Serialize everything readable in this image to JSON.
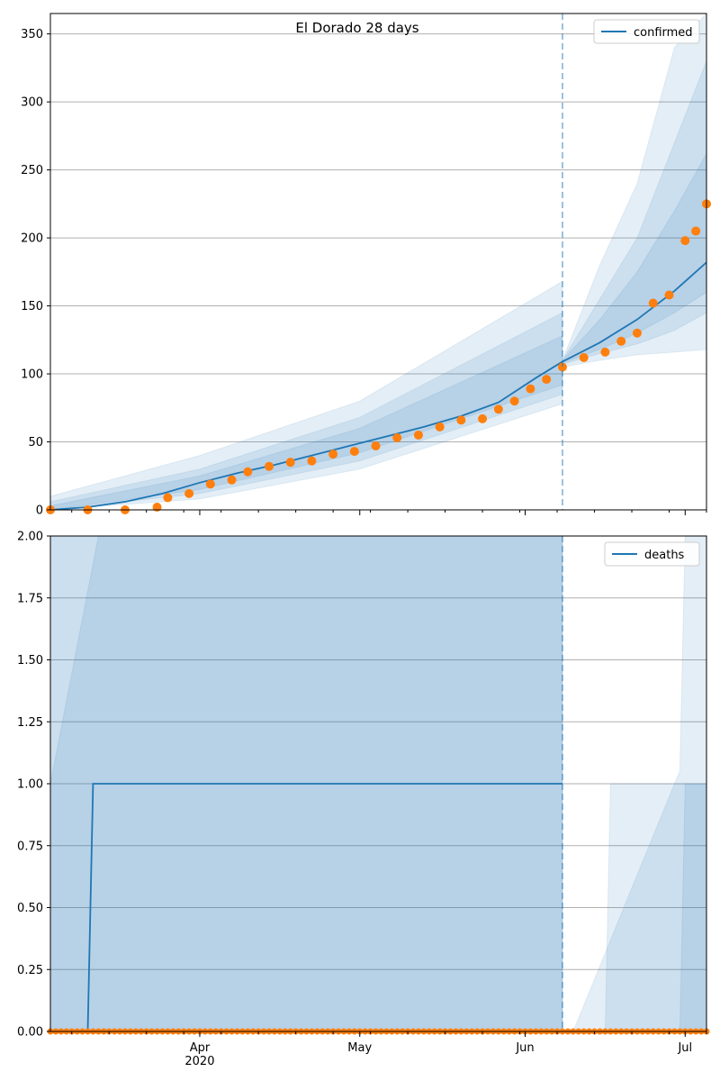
{
  "chart_data": [
    {
      "type": "line",
      "title": "El Dorado 28 days",
      "xlabel": "",
      "ylabel": "",
      "x_range": [
        "2020-03-04",
        "2020-07-05"
      ],
      "ylim": [
        0,
        365
      ],
      "y_ticks": [
        0,
        50,
        100,
        150,
        200,
        250,
        300,
        350
      ],
      "grid": "horizontal",
      "legend": "top-right",
      "forecast_start": "2020-06-08",
      "series": [
        {
          "name": "confirmed",
          "kind": "line",
          "color": "#1f77b4",
          "points": [
            [
              "2020-03-04",
              0
            ],
            [
              "2020-03-11",
              2
            ],
            [
              "2020-03-18",
              6
            ],
            [
              "2020-03-25",
              12
            ],
            [
              "2020-04-01",
              20
            ],
            [
              "2020-04-08",
              27
            ],
            [
              "2020-04-15",
              33
            ],
            [
              "2020-04-22",
              40
            ],
            [
              "2020-04-29",
              47
            ],
            [
              "2020-05-06",
              54
            ],
            [
              "2020-05-13",
              61
            ],
            [
              "2020-05-20",
              69
            ],
            [
              "2020-05-27",
              79
            ],
            [
              "2020-06-03",
              97
            ],
            [
              "2020-06-08",
              109
            ],
            [
              "2020-06-15",
              123
            ],
            [
              "2020-06-22",
              140
            ],
            [
              "2020-06-29",
              161
            ],
            [
              "2020-07-05",
              182
            ]
          ]
        },
        {
          "name": "",
          "kind": "observed",
          "color": "#ff7f0e",
          "points": [
            [
              "2020-03-04",
              0
            ],
            [
              "2020-03-11",
              0
            ],
            [
              "2020-03-18",
              0
            ],
            [
              "2020-03-24",
              2
            ],
            [
              "2020-03-26",
              9
            ],
            [
              "2020-03-30",
              12
            ],
            [
              "2020-04-03",
              19
            ],
            [
              "2020-04-07",
              22
            ],
            [
              "2020-04-10",
              28
            ],
            [
              "2020-04-14",
              32
            ],
            [
              "2020-04-18",
              35
            ],
            [
              "2020-04-22",
              36
            ],
            [
              "2020-04-26",
              41
            ],
            [
              "2020-04-30",
              43
            ],
            [
              "2020-05-04",
              47
            ],
            [
              "2020-05-08",
              53
            ],
            [
              "2020-05-12",
              55
            ],
            [
              "2020-05-16",
              61
            ],
            [
              "2020-05-20",
              66
            ],
            [
              "2020-05-24",
              67
            ],
            [
              "2020-05-27",
              74
            ],
            [
              "2020-05-30",
              80
            ],
            [
              "2020-06-02",
              89
            ],
            [
              "2020-06-05",
              96
            ],
            [
              "2020-06-08",
              105
            ],
            [
              "2020-06-12",
              112
            ],
            [
              "2020-06-16",
              116
            ],
            [
              "2020-06-19",
              124
            ],
            [
              "2020-06-22",
              130
            ],
            [
              "2020-06-25",
              152
            ],
            [
              "2020-06-28",
              158
            ],
            [
              "2020-07-01",
              198
            ],
            [
              "2020-07-03",
              205
            ],
            [
              "2020-07-05",
              225
            ]
          ]
        }
      ],
      "bands": [
        {
          "opacity": 0.12,
          "upper": [
            [
              "2020-03-04",
              10
            ],
            [
              "2020-04-01",
              40
            ],
            [
              "2020-05-01",
              80
            ],
            [
              "2020-06-08",
              168
            ],
            [
              "2020-06-08",
              110
            ],
            [
              "2020-06-15",
              180
            ],
            [
              "2020-06-22",
              240
            ],
            [
              "2020-06-29",
              340
            ],
            [
              "2020-07-05",
              365
            ]
          ],
          "lower": [
            [
              "2020-03-04",
              0
            ],
            [
              "2020-04-01",
              8
            ],
            [
              "2020-05-01",
              30
            ],
            [
              "2020-06-08",
              78
            ],
            [
              "2020-06-08",
              105
            ],
            [
              "2020-06-15",
              110
            ],
            [
              "2020-06-22",
              114
            ],
            [
              "2020-06-29",
              116
            ],
            [
              "2020-07-05",
              118
            ]
          ]
        },
        {
          "opacity": 0.12,
          "upper": [
            [
              "2020-03-04",
              6
            ],
            [
              "2020-04-01",
              30
            ],
            [
              "2020-05-01",
              68
            ],
            [
              "2020-06-08",
              145
            ],
            [
              "2020-06-08",
              110
            ],
            [
              "2020-06-15",
              155
            ],
            [
              "2020-06-22",
              200
            ],
            [
              "2020-06-29",
              270
            ],
            [
              "2020-07-05",
              330
            ]
          ],
          "lower": [
            [
              "2020-03-04",
              0
            ],
            [
              "2020-04-01",
              12
            ],
            [
              "2020-05-01",
              36
            ],
            [
              "2020-06-08",
              85
            ],
            [
              "2020-06-08",
              107
            ],
            [
              "2020-06-15",
              115
            ],
            [
              "2020-06-22",
              122
            ],
            [
              "2020-06-29",
              132
            ],
            [
              "2020-07-05",
              145
            ]
          ]
        },
        {
          "opacity": 0.12,
          "upper": [
            [
              "2020-03-04",
              3
            ],
            [
              "2020-04-01",
              25
            ],
            [
              "2020-05-01",
              60
            ],
            [
              "2020-06-08",
              128
            ],
            [
              "2020-06-08",
              110
            ],
            [
              "2020-06-15",
              140
            ],
            [
              "2020-06-22",
              175
            ],
            [
              "2020-06-29",
              220
            ],
            [
              "2020-07-05",
              262
            ]
          ],
          "lower": [
            [
              "2020-03-04",
              0
            ],
            [
              "2020-04-01",
              15
            ],
            [
              "2020-05-01",
              42
            ],
            [
              "2020-06-08",
              92
            ],
            [
              "2020-06-08",
              108
            ],
            [
              "2020-06-15",
              118
            ],
            [
              "2020-06-22",
              130
            ],
            [
              "2020-06-29",
              145
            ],
            [
              "2020-07-05",
              160
            ]
          ]
        }
      ]
    },
    {
      "type": "line",
      "title": "",
      "xlabel": "",
      "ylabel": "",
      "x_range": [
        "2020-03-04",
        "2020-07-05"
      ],
      "ylim": [
        0,
        2
      ],
      "y_ticks": [
        0.0,
        0.25,
        0.5,
        0.75,
        1.0,
        1.25,
        1.5,
        1.75,
        2.0
      ],
      "x_ticks": [
        {
          "date": "2020-04-01",
          "label": "Apr",
          "sublabel": "2020"
        },
        {
          "date": "2020-05-01",
          "label": "May",
          "sublabel": ""
        },
        {
          "date": "2020-06-01",
          "label": "Jun",
          "sublabel": ""
        },
        {
          "date": "2020-07-01",
          "label": "Jul",
          "sublabel": ""
        }
      ],
      "grid": "horizontal",
      "legend": "top-right",
      "forecast_start": "2020-06-08",
      "series": [
        {
          "name": "deaths",
          "kind": "line",
          "color": "#1f77b4",
          "points": [
            [
              "2020-03-04",
              0
            ],
            [
              "2020-03-11",
              0
            ],
            [
              "2020-03-12",
              1
            ],
            [
              "2020-06-08",
              1
            ]
          ]
        },
        {
          "name": "",
          "kind": "observed",
          "color": "#ff7f0e",
          "points": [
            [
              "2020-03-04",
              0
            ],
            [
              "2020-07-05",
              0
            ]
          ]
        }
      ],
      "bands": [
        {
          "opacity": 0.12,
          "upper": [
            [
              "2020-03-04",
              2
            ],
            [
              "2020-06-08",
              2
            ],
            [
              "2020-06-08",
              0
            ],
            [
              "2020-06-10",
              0
            ],
            [
              "2020-06-10",
              0
            ],
            [
              "2020-06-29",
              1.0
            ],
            [
              "2020-06-30",
              1.05
            ],
            [
              "2020-07-01",
              2
            ],
            [
              "2020-07-05",
              2
            ]
          ],
          "lower": [
            [
              "2020-03-04",
              0
            ],
            [
              "2020-06-08",
              0
            ],
            [
              "2020-06-08",
              0
            ],
            [
              "2020-06-10",
              0
            ],
            [
              "2020-07-05",
              0
            ]
          ]
        },
        {
          "opacity": 0.12,
          "upper": [
            [
              "2020-03-04",
              2
            ],
            [
              "2020-03-13",
              2
            ],
            [
              "2020-06-08",
              2
            ],
            [
              "2020-06-08",
              0
            ],
            [
              "2020-06-16",
              0
            ],
            [
              "2020-06-17",
              1
            ],
            [
              "2020-07-05",
              1
            ]
          ],
          "lower": [
            [
              "2020-03-04",
              0
            ],
            [
              "2020-07-05",
              0
            ]
          ]
        },
        {
          "opacity": 0.12,
          "upper": [
            [
              "2020-03-04",
              1
            ],
            [
              "2020-03-13",
              2
            ],
            [
              "2020-06-08",
              2
            ],
            [
              "2020-06-08",
              0
            ],
            [
              "2020-06-30",
              0
            ],
            [
              "2020-07-01",
              1
            ],
            [
              "2020-07-05",
              1
            ]
          ],
          "lower": [
            [
              "2020-03-04",
              0
            ],
            [
              "2020-07-05",
              0
            ]
          ]
        }
      ]
    }
  ]
}
